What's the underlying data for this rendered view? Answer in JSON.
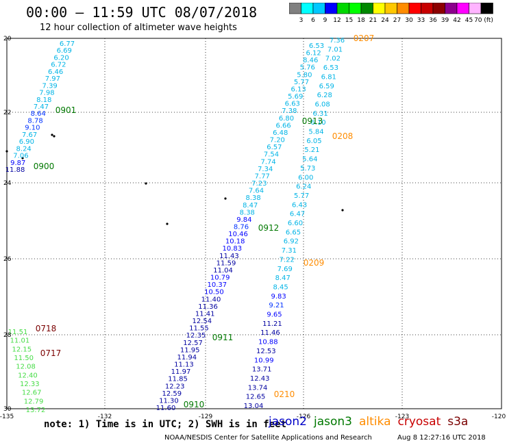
{
  "header": {
    "title": "00:00 – 11:59 UTC 08/07/2018",
    "subtitle": "12 hour collection of altimeter wave heights"
  },
  "colorbar": {
    "colors": [
      "#808080",
      "#00ffff",
      "#00c8ff",
      "#0000ff",
      "#00d800",
      "#00ff00",
      "#008800",
      "#ffff00",
      "#ffc800",
      "#ff8c00",
      "#ff0000",
      "#c80000",
      "#8c0000",
      "#8c008c",
      "#ff00ff",
      "#ffb4ff",
      "#000000"
    ],
    "labels": [
      "3",
      "6",
      "9",
      "12",
      "15",
      "18",
      "21",
      "24",
      "27",
      "30",
      "33",
      "36",
      "39",
      "42",
      "45",
      "70 (ft)"
    ]
  },
  "axes": {
    "lat_labels": [
      "20",
      "22",
      "24",
      "26",
      "28",
      "30"
    ],
    "lon_labels": [
      "-135",
      "-132",
      "-129",
      "-126",
      "-123",
      "-120"
    ]
  },
  "colors": {
    "jason2": "#0000c8",
    "jason3": "#007800",
    "altika": "#ff8c00",
    "cryosat": "#c80000",
    "s3a": "#7a0000",
    "cyan": "#00b4e6",
    "green": "#46dc46",
    "darkblue": "#0000a0"
  },
  "tracks": [
    {
      "id": "t1",
      "color": "cyan",
      "dark_tail": true,
      "values": [
        "6.77",
        "6.69",
        "6.20",
        "6.72",
        "6.46",
        "7.97",
        "7.39",
        "7.98",
        "8.18",
        "7.47",
        "8.64",
        "8.78",
        "9.10",
        "7.67",
        "6.90",
        "8.24",
        "7.06",
        "9.87",
        "11.88"
      ],
      "tags": [
        {
          "text": "0901",
          "sat": "jason3"
        },
        {
          "text": "0900",
          "sat": "jason3"
        }
      ]
    },
    {
      "id": "t2",
      "color": "cyan",
      "values": [
        "6.53",
        "6.12",
        "8.46",
        "5.76",
        "5.80",
        "5.77",
        "6.13",
        "5.69",
        "6.63",
        "7.38",
        "6.80",
        "6.66",
        "6.48",
        "7.20",
        "6.57",
        "7.54",
        "7.74",
        "7.34",
        "7.77",
        "7.23",
        "7.64",
        "8.38",
        "8.47",
        "8.38",
        "9.84",
        "8.76",
        "10.46",
        "10.18",
        "10.83",
        "11.43",
        "11.59",
        "11.04",
        "10.79",
        "10.37",
        "10.50",
        "11.40",
        "11.36",
        "11.41",
        "12.54",
        "11.55",
        "12.35",
        "12.57",
        "11.95",
        "11.94",
        "11.13",
        "11.97",
        "11.85",
        "12.23",
        "12.59",
        "11.30",
        "11.60"
      ],
      "tags": [
        {
          "text": "0913",
          "sat": "jason3"
        },
        {
          "text": "0912",
          "sat": "jason3"
        },
        {
          "text": "0911",
          "sat": "jason3"
        },
        {
          "text": "0910",
          "sat": "jason3"
        }
      ]
    },
    {
      "id": "t3",
      "color": "cyan",
      "values": [
        "7.36",
        "7.01",
        "7.02",
        "6.53",
        "6.81",
        "6.59",
        "6.28",
        "6.08",
        "6.31",
        "6.10",
        "5.84",
        "6.05",
        "5.21",
        "5.64",
        "5.73",
        "6.00",
        "6.24",
        "5.77",
        "6.43",
        "6.47",
        "6.60",
        "6.65",
        "6.92",
        "7.31",
        "7.22",
        "7.69",
        "8.47",
        "8.45",
        "9.83",
        "9.21",
        "9.65",
        "11.21",
        "11.46",
        "10.88",
        "12.53",
        "10.99",
        "13.71",
        "12.43",
        "13.74",
        "12.65",
        "13.04"
      ],
      "tags": [
        {
          "text": "0207",
          "sat": "altika"
        },
        {
          "text": "0208",
          "sat": "altika"
        },
        {
          "text": "0209",
          "sat": "altika"
        },
        {
          "text": "0210",
          "sat": "altika"
        }
      ]
    },
    {
      "id": "t4",
      "color": "green",
      "values": [
        "11.51",
        "11.01",
        "12.15",
        "11.50",
        "12.08",
        "12.40",
        "12.33",
        "12.67",
        "12.79",
        "13.72"
      ],
      "tags": [
        {
          "text": "0718",
          "sat": "s3a"
        },
        {
          "text": "0717",
          "sat": "s3a"
        }
      ]
    }
  ],
  "footer": {
    "note": "note: 1) Time is in UTC; 2) SWH is in feet",
    "satellites": [
      {
        "name": "jason2",
        "sat": "jason2"
      },
      {
        "name": "jason3",
        "sat": "jason3"
      },
      {
        "name": "altika",
        "sat": "altika"
      },
      {
        "name": "cryosat",
        "sat": "cryosat"
      },
      {
        "name": "s3a",
        "sat": "s3a"
      }
    ],
    "credit": "NOAA/NESDIS Center for Satellite Applications and Research",
    "timestamp": "Aug  8 12:27:16 UTC 2018"
  }
}
